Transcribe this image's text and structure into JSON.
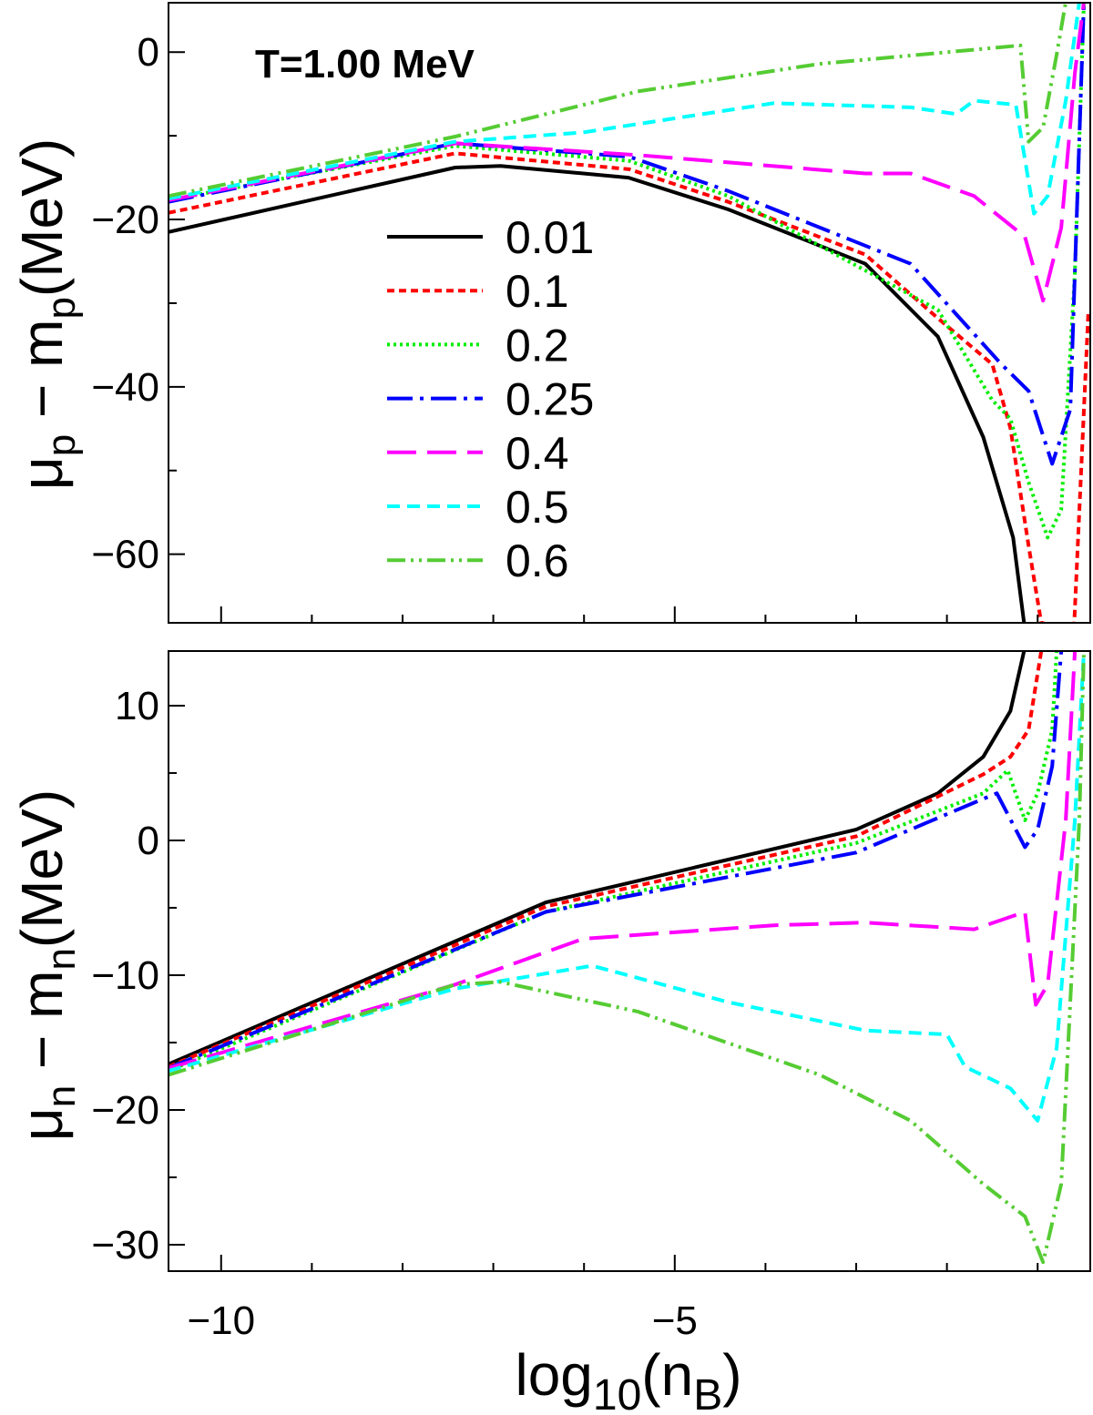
{
  "chart_data": [
    {
      "type": "line",
      "panel": "top",
      "title": "T=1.00 MeV",
      "ylabel": {
        "main": "μ",
        "sub": "p",
        "mid": " − m",
        "sub2": "p",
        "tail": "(MeV)"
      },
      "xlim": [
        -10.58,
        -0.42
      ],
      "ylim": [
        -68.2,
        5.9
      ],
      "yticks": [
        {
          "v": 0,
          "label": "0"
        },
        {
          "v": -20,
          "label": "−20"
        },
        {
          "v": -40,
          "label": "−40"
        },
        {
          "v": -60,
          "label": "−60"
        }
      ],
      "yminor": [
        -10,
        -30,
        -50
      ],
      "legend_position": "center-left",
      "series": [
        {
          "name": "0.01",
          "color": "#000000",
          "dash": "",
          "points": [
            [
              -10.58,
              -21.5
            ],
            [
              -7.42,
              -13.8
            ],
            [
              -6.92,
              -13.6
            ],
            [
              -5.51,
              -15
            ],
            [
              -4.41,
              -18.8
            ],
            [
              -2.9,
              -25.3
            ],
            [
              -2.1,
              -34
            ],
            [
              -1.6,
              -46
            ],
            [
              -1.27,
              -58
            ],
            [
              -1.15,
              -68.2
            ]
          ]
        },
        {
          "name": "0.1",
          "color": "#ff0000",
          "dash": "8,5",
          "points": [
            [
              -10.58,
              -19.2
            ],
            [
              -7.42,
              -12.1
            ],
            [
              -5.5,
              -14
            ],
            [
              -4.41,
              -17.9
            ],
            [
              -2.9,
              -24.2
            ],
            [
              -2.1,
              -31.8
            ],
            [
              -1.5,
              -37.3
            ],
            [
              -1.3,
              -44.9
            ],
            [
              -1.1,
              -59
            ],
            [
              -0.96,
              -68.2
            ],
            [
              -0.6,
              -69
            ],
            [
              -0.44,
              -30.8
            ]
          ]
        },
        {
          "name": "0.2",
          "color": "#00ee00",
          "dash": "3,4",
          "points": [
            [
              -10.58,
              -17.7
            ],
            [
              -7.42,
              -11.2
            ],
            [
              -5.5,
              -13
            ],
            [
              -4.41,
              -17.2
            ],
            [
              -2.1,
              -30.8
            ],
            [
              -1.5,
              -41.6
            ],
            [
              -1.3,
              -43.8
            ],
            [
              -1.1,
              -51.4
            ],
            [
              -0.89,
              -58
            ],
            [
              -0.74,
              -54.7
            ],
            [
              -0.59,
              -26.4
            ],
            [
              -0.49,
              6
            ]
          ]
        },
        {
          "name": "0.25",
          "color": "#0000ff",
          "dash": "28,8,4,8",
          "points": [
            [
              -10.58,
              -17.9
            ],
            [
              -7.42,
              -10.9
            ],
            [
              -5.5,
              -12.5
            ],
            [
              -4.41,
              -16.6
            ],
            [
              -2.4,
              -25.3
            ],
            [
              -1.4,
              -37.3
            ],
            [
              -1.1,
              -40.5
            ],
            [
              -0.84,
              -49.2
            ],
            [
              -0.64,
              -42.7
            ],
            [
              -0.49,
              6
            ]
          ]
        },
        {
          "name": "0.4",
          "color": "#ff00ff",
          "dash": "32,12",
          "points": [
            [
              -10.58,
              -17.7
            ],
            [
              -7.42,
              -10.9
            ],
            [
              -5.41,
              -12.3
            ],
            [
              -2.9,
              -14.5
            ],
            [
              -2.4,
              -14.5
            ],
            [
              -1.7,
              -17.2
            ],
            [
              -1.14,
              -22.1
            ],
            [
              -0.94,
              -29.7
            ],
            [
              -0.74,
              -21
            ],
            [
              -0.59,
              -2.5
            ],
            [
              -0.49,
              6
            ]
          ]
        },
        {
          "name": "0.5",
          "color": "#00ffff",
          "dash": "14,8",
          "points": [
            [
              -10.58,
              -17.5
            ],
            [
              -7.42,
              -10.7
            ],
            [
              -6.01,
              -9.6
            ],
            [
              -3.91,
              -6.1
            ],
            [
              -2.4,
              -6.6
            ],
            [
              -1.9,
              -7.4
            ],
            [
              -1.7,
              -5.8
            ],
            [
              -1.24,
              -6.3
            ],
            [
              -1.04,
              -19.3
            ],
            [
              -0.89,
              -17.2
            ],
            [
              -0.69,
              -5.8
            ],
            [
              -0.54,
              6
            ]
          ]
        },
        {
          "name": "0.6",
          "color": "#55cc33",
          "dash": "20,6,3,6,3,6",
          "points": [
            [
              -10.58,
              -17.2
            ],
            [
              -7.42,
              -10.1
            ],
            [
              -5.41,
              -4.7
            ],
            [
              -3.4,
              -1.4
            ],
            [
              -1.19,
              0.8
            ],
            [
              -1.1,
              -10.7
            ],
            [
              -0.94,
              -9
            ],
            [
              -0.79,
              -0.3
            ],
            [
              -0.69,
              6
            ]
          ]
        }
      ]
    },
    {
      "type": "line",
      "panel": "bottom",
      "ylabel": {
        "main": "μ",
        "sub": "n",
        "mid": " − m",
        "sub2": "n",
        "tail": "(MeV)"
      },
      "xlabel": {
        "main": "log",
        "sub": "10",
        "mid": "(n",
        "sub2": "B",
        "tail": ")"
      },
      "xlim": [
        -10.58,
        -0.42
      ],
      "ylim": [
        -31.96,
        14.05
      ],
      "xticks": [
        {
          "v": -10,
          "label": "−10"
        },
        {
          "v": -5,
          "label": "−5"
        }
      ],
      "xminor": [
        -9,
        -8,
        -7,
        -6,
        -4,
        -3,
        -2,
        -1
      ],
      "yticks": [
        {
          "v": 10,
          "label": "10"
        },
        {
          "v": 0,
          "label": "0"
        },
        {
          "v": -10,
          "label": "−10"
        },
        {
          "v": -20,
          "label": "−20"
        },
        {
          "v": -30,
          "label": "−30"
        }
      ],
      "yminor": [
        5,
        -5,
        -15,
        -25
      ],
      "series": [
        {
          "name": "0.01",
          "color": "#000000",
          "dash": "",
          "points": [
            [
              -10.58,
              -16.6
            ],
            [
              -6.42,
              -4.6
            ],
            [
              -3.0,
              0.8
            ],
            [
              -2.1,
              3.5
            ],
            [
              -1.6,
              6.2
            ],
            [
              -1.3,
              9.6
            ],
            [
              -1.15,
              14.05
            ]
          ]
        },
        {
          "name": "0.1",
          "color": "#ff0000",
          "dash": "8,5",
          "points": [
            [
              -10.58,
              -16.8
            ],
            [
              -6.42,
              -4.9
            ],
            [
              -3.0,
              0.3
            ],
            [
              -1.6,
              4.9
            ],
            [
              -1.3,
              6.2
            ],
            [
              -1.1,
              8.2
            ],
            [
              -0.96,
              14.05
            ]
          ]
        },
        {
          "name": "0.2",
          "color": "#00ee00",
          "dash": "3,4",
          "points": [
            [
              -10.58,
              -17.1
            ],
            [
              -6.42,
              -5.3
            ],
            [
              -3.0,
              -0.2
            ],
            [
              -1.6,
              3.5
            ],
            [
              -1.33,
              5.2
            ],
            [
              -1.14,
              1.5
            ],
            [
              -1.0,
              3.5
            ],
            [
              -0.84,
              8.2
            ],
            [
              -0.79,
              14.05
            ]
          ]
        },
        {
          "name": "0.25",
          "color": "#0000ff",
          "dash": "28,8,4,8",
          "points": [
            [
              -10.58,
              -16.9
            ],
            [
              -6.42,
              -5.3
            ],
            [
              -3.0,
              -0.9
            ],
            [
              -1.7,
              2.8
            ],
            [
              -1.45,
              3.5
            ],
            [
              -1.14,
              -0.5
            ],
            [
              -1.0,
              0.8
            ],
            [
              -0.84,
              5.5
            ],
            [
              -0.74,
              14.05
            ]
          ]
        },
        {
          "name": "0.4",
          "color": "#ff00ff",
          "dash": "32,12",
          "points": [
            [
              -10.58,
              -16.9
            ],
            [
              -7.42,
              -10.7
            ],
            [
              -6.01,
              -7.3
            ],
            [
              -3.91,
              -6.3
            ],
            [
              -2.9,
              -6.1
            ],
            [
              -1.7,
              -6.6
            ],
            [
              -1.14,
              -5.3
            ],
            [
              -1.02,
              -12.2
            ],
            [
              -0.89,
              -10.7
            ],
            [
              -0.69,
              1.5
            ],
            [
              -0.59,
              14.05
            ]
          ]
        },
        {
          "name": "0.5",
          "color": "#00ffff",
          "dash": "14,8",
          "points": [
            [
              -10.58,
              -17.1
            ],
            [
              -7.42,
              -11
            ],
            [
              -5.91,
              -9.3
            ],
            [
              -4.41,
              -12
            ],
            [
              -2.9,
              -14.1
            ],
            [
              -2.0,
              -14.4
            ],
            [
              -1.8,
              -16.8
            ],
            [
              -1.3,
              -18.4
            ],
            [
              -1.0,
              -20.8
            ],
            [
              -0.79,
              -15.4
            ],
            [
              -0.59,
              1.5
            ],
            [
              -0.49,
              14.05
            ]
          ]
        },
        {
          "name": "0.6",
          "color": "#55cc33",
          "dash": "20,6,3,6,3,6",
          "points": [
            [
              -10.58,
              -17.4
            ],
            [
              -7.42,
              -10.7
            ],
            [
              -6.92,
              -10.5
            ],
            [
              -5.41,
              -12.7
            ],
            [
              -3.4,
              -17.4
            ],
            [
              -2.4,
              -20.8
            ],
            [
              -1.6,
              -25.5
            ],
            [
              -1.14,
              -27.9
            ],
            [
              -0.94,
              -31.3
            ],
            [
              -0.74,
              -25.5
            ],
            [
              -0.54,
              1.5
            ],
            [
              -0.49,
              14.05
            ]
          ]
        }
      ]
    }
  ]
}
